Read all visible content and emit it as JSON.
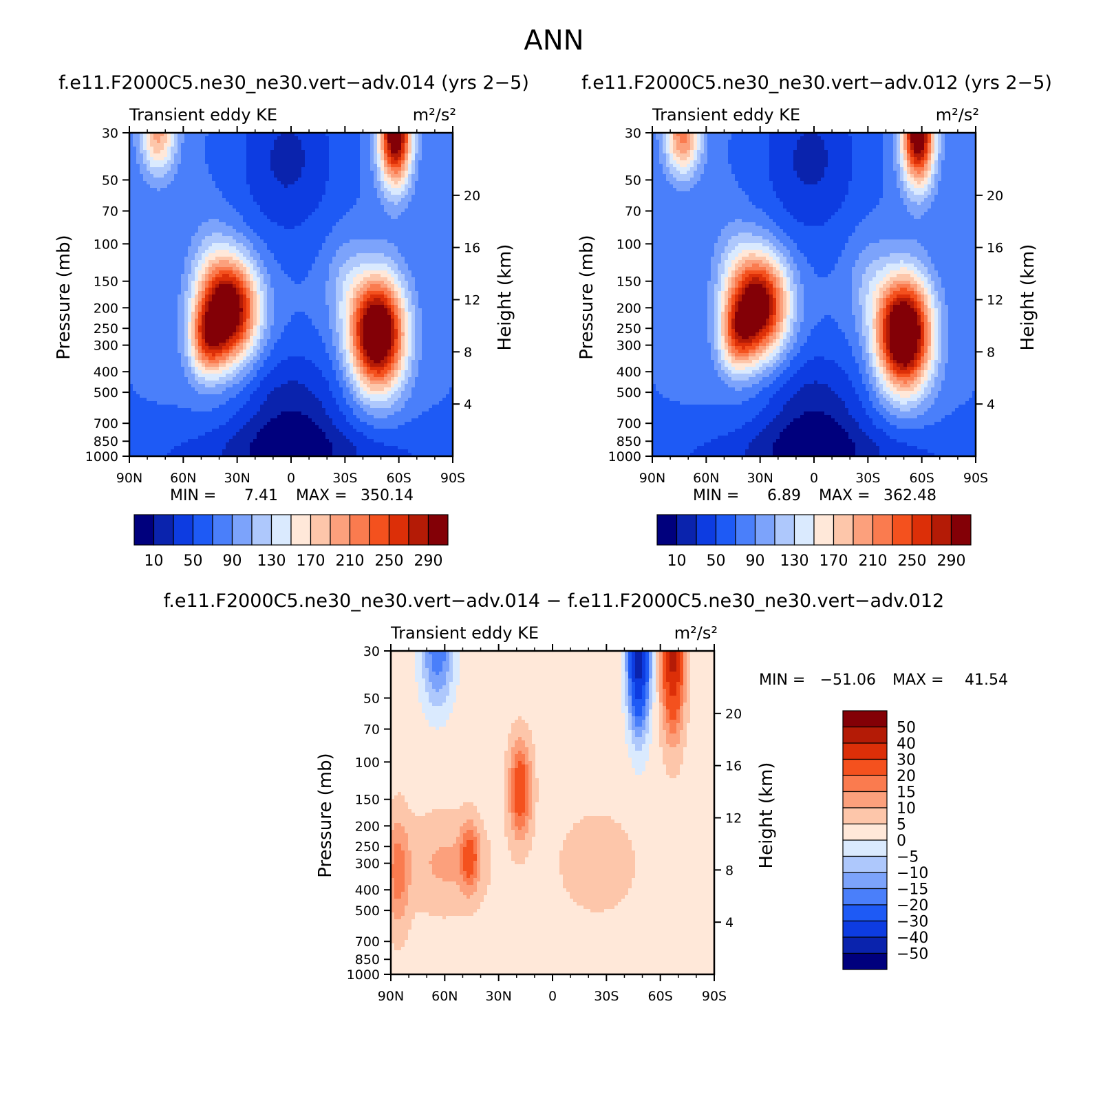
{
  "figure_title": "ANN",
  "colors": {
    "cmap_abs": [
      "#00007d",
      "#0a23ad",
      "#0d3ce1",
      "#1e5af5",
      "#4a7ffa",
      "#7ca3fb",
      "#aec8fc",
      "#daeafe",
      "#ffe8d9",
      "#fdc6aa",
      "#fca07c",
      "#fa7b4f",
      "#f4511e",
      "#dc2f08",
      "#b41b06",
      "#830006"
    ],
    "cmap_diff": [
      "#00007d",
      "#0a23ad",
      "#0d3ce1",
      "#1e5af5",
      "#4a7ffa",
      "#7ca3fb",
      "#aec8fc",
      "#daeafe",
      "#ffe8d9",
      "#fdc6aa",
      "#fca07c",
      "#fa7b4f",
      "#f4511e",
      "#dc2f08",
      "#b41b06",
      "#830006"
    ]
  },
  "chart_data": [
    {
      "type": "heatmap",
      "title": "f.e11.F2000C5.ne30_ne30.vert−adv.014 (yrs 2−5)",
      "left_string": "Transient eddy KE",
      "right_string": "m²/s²",
      "ylabel": "Pressure (mb)",
      "ylabel_right": "Height (km)",
      "x_ticks": [
        "90N",
        "60N",
        "30N",
        "0",
        "30S",
        "60S",
        "90S"
      ],
      "x_values": [
        90,
        60,
        30,
        0,
        -30,
        -60,
        -90
      ],
      "y_ticks": [
        "30",
        "50",
        "70",
        "100",
        "150",
        "200",
        "250",
        "300",
        "400",
        "500",
        "700",
        "850",
        "1000"
      ],
      "y_values": [
        30,
        50,
        70,
        100,
        150,
        200,
        250,
        300,
        400,
        500,
        700,
        850,
        1000
      ],
      "y_right_ticks": [
        "4",
        "8",
        "12",
        "16",
        "20"
      ],
      "y_right_values": [
        4,
        8,
        12,
        16,
        20
      ],
      "ylim": [
        1000,
        30
      ],
      "y_scale": "log",
      "min_label": "MIN =",
      "min_value": "7.41",
      "max_label": "MAX =",
      "max_value": "350.14",
      "levels": [
        10,
        30,
        50,
        70,
        90,
        110,
        130,
        150,
        170,
        190,
        210,
        230,
        250,
        270,
        290
      ],
      "colorbar_labels": [
        "10",
        "50",
        "90",
        "130",
        "170",
        "210",
        "250",
        "290"
      ],
      "features": [
        {
          "lat": 35,
          "p": 205,
          "value": 325
        },
        {
          "lat": -48,
          "p": 265,
          "value": 350
        },
        {
          "lat": -58,
          "p": 30,
          "value": 300
        },
        {
          "lat": 74,
          "p": 30,
          "value": 165
        },
        {
          "lat": 2,
          "p": 40,
          "value": 7
        },
        {
          "lat": 0,
          "p": 650,
          "value": 9
        }
      ]
    },
    {
      "type": "heatmap",
      "title": "f.e11.F2000C5.ne30_ne30.vert−adv.012 (yrs 2−5)",
      "left_string": "Transient eddy KE",
      "right_string": "m²/s²",
      "ylabel": "Pressure (mb)",
      "ylabel_right": "Height (km)",
      "x_ticks": [
        "90N",
        "60N",
        "30N",
        "0",
        "30S",
        "60S",
        "90S"
      ],
      "x_values": [
        90,
        60,
        30,
        0,
        -30,
        -60,
        -90
      ],
      "y_ticks": [
        "30",
        "50",
        "70",
        "100",
        "150",
        "200",
        "250",
        "300",
        "400",
        "500",
        "700",
        "850",
        "1000"
      ],
      "y_values": [
        30,
        50,
        70,
        100,
        150,
        200,
        250,
        300,
        400,
        500,
        700,
        850,
        1000
      ],
      "y_right_ticks": [
        "4",
        "8",
        "12",
        "16",
        "20"
      ],
      "y_right_values": [
        4,
        8,
        12,
        16,
        20
      ],
      "ylim": [
        1000,
        30
      ],
      "y_scale": "log",
      "min_label": "MIN =",
      "min_value": "6.89",
      "max_label": "MAX =",
      "max_value": "362.48",
      "levels": [
        10,
        30,
        50,
        70,
        90,
        110,
        130,
        150,
        170,
        190,
        210,
        230,
        250,
        270,
        290
      ],
      "colorbar_labels": [
        "10",
        "50",
        "90",
        "130",
        "170",
        "210",
        "250",
        "290"
      ],
      "features": [
        {
          "lat": 31,
          "p": 195,
          "value": 310
        },
        {
          "lat": -50,
          "p": 265,
          "value": 362
        },
        {
          "lat": -58,
          "p": 30,
          "value": 300
        },
        {
          "lat": 73,
          "p": 30,
          "value": 190
        },
        {
          "lat": 2,
          "p": 40,
          "value": 7
        },
        {
          "lat": 0,
          "p": 650,
          "value": 9
        }
      ]
    },
    {
      "type": "heatmap",
      "title": "f.e11.F2000C5.ne30_ne30.vert−adv.014 − f.e11.F2000C5.ne30_ne30.vert−adv.012",
      "left_string": "Transient eddy KE",
      "right_string": "m²/s²",
      "ylabel": "Pressure (mb)",
      "ylabel_right": "Height (km)",
      "x_ticks": [
        "90N",
        "60N",
        "30N",
        "0",
        "30S",
        "60S",
        "90S"
      ],
      "x_values": [
        90,
        60,
        30,
        0,
        -30,
        -60,
        -90
      ],
      "y_ticks": [
        "30",
        "50",
        "70",
        "100",
        "150",
        "200",
        "250",
        "300",
        "400",
        "500",
        "700",
        "850",
        "1000"
      ],
      "y_values": [
        30,
        50,
        70,
        100,
        150,
        200,
        250,
        300,
        400,
        500,
        700,
        850,
        1000
      ],
      "y_right_ticks": [
        "4",
        "8",
        "12",
        "16",
        "20"
      ],
      "y_right_values": [
        4,
        8,
        12,
        16,
        20
      ],
      "ylim": [
        1000,
        30
      ],
      "y_scale": "log",
      "min_label": "MIN =",
      "min_value": "−51.06",
      "max_label": "MAX =",
      "max_value": "41.54",
      "levels": [
        -50,
        -40,
        -30,
        -20,
        -15,
        -10,
        -5,
        0,
        5,
        10,
        15,
        20,
        30,
        40,
        50
      ],
      "colorbar_labels": [
        "50",
        "40",
        "30",
        "20",
        "15",
        "10",
        "5",
        "0",
        "−5",
        "−10",
        "−15",
        "−20",
        "−30",
        "−40",
        "−50"
      ],
      "features": [
        {
          "lat": -48,
          "p": 30,
          "value": -51
        },
        {
          "lat": 64,
          "p": 30,
          "value": -22
        },
        {
          "lat": -67,
          "p": 30,
          "value": 41
        },
        {
          "lat": 18,
          "p": 135,
          "value": 24
        },
        {
          "lat": 46,
          "p": 280,
          "value": 18
        },
        {
          "lat": 86,
          "p": 330,
          "value": 14
        }
      ]
    }
  ]
}
